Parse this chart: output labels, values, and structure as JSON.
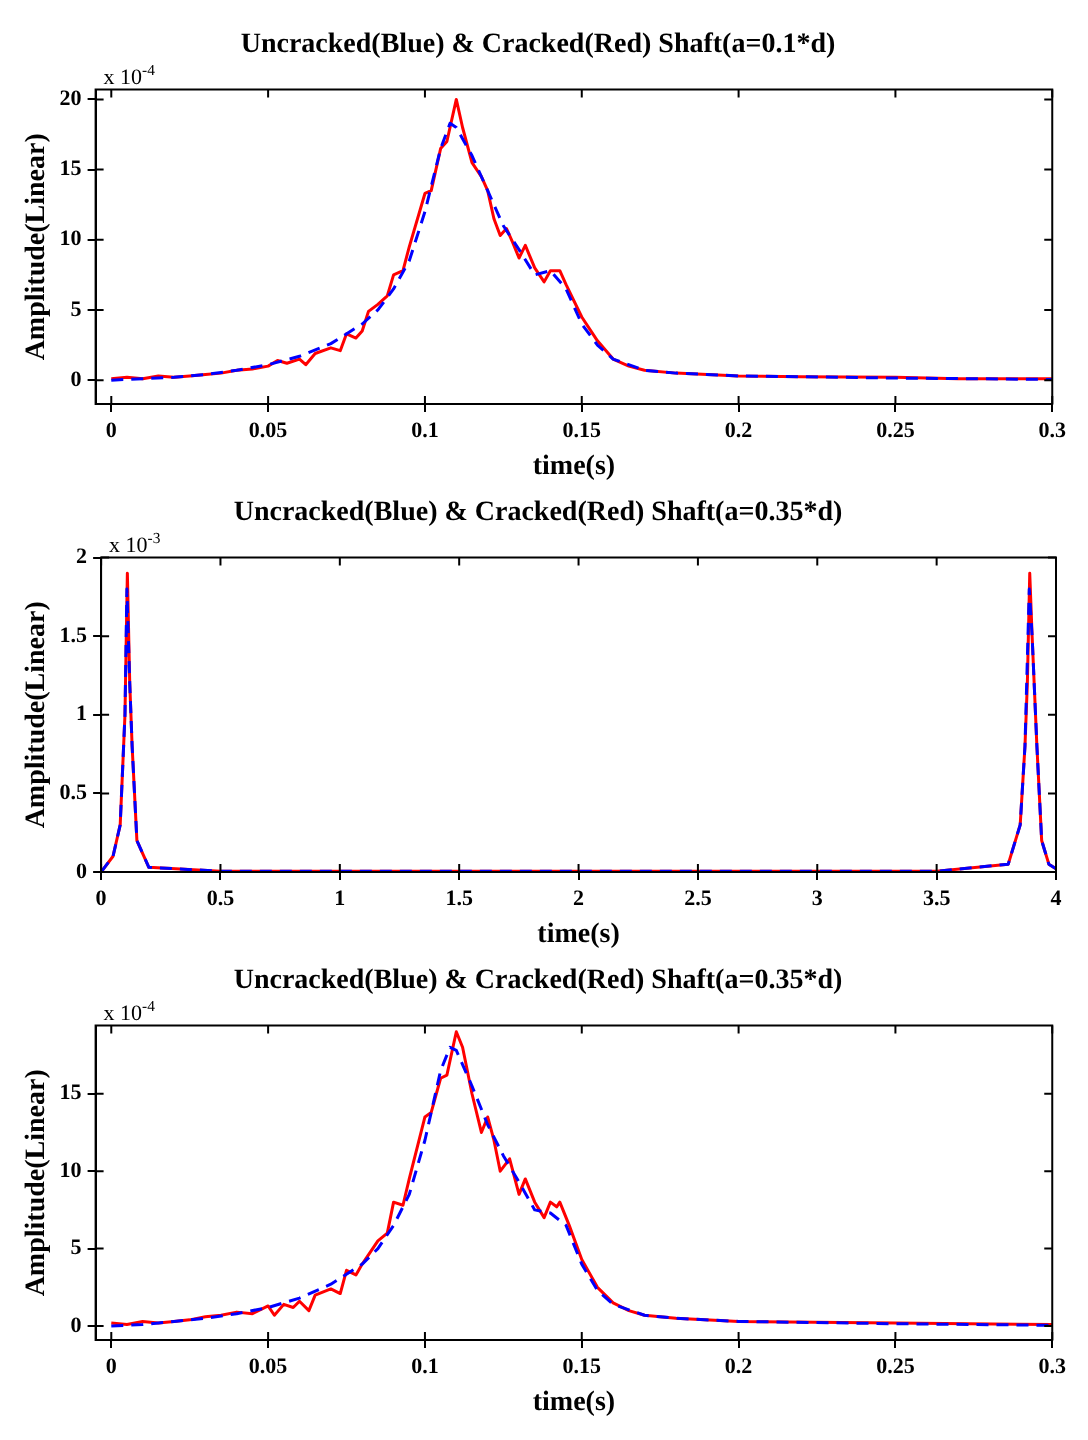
{
  "chart_data": [
    {
      "type": "line",
      "title": "Uncracked(Blue) & Cracked(Red) Shaft(a=0.1*d)",
      "xlabel": "time(s)",
      "ylabel": "Amplitude(Linear)",
      "annotations": [
        "x 10$^{-4}$"
      ],
      "marker": "none",
      "xlim": [
        -0.005,
        0.3
      ],
      "ylim": [
        -1.7,
        20.7
      ],
      "xticks": [
        0,
        0.05,
        0.1,
        0.15,
        0.2,
        0.25,
        0.3
      ],
      "yticks": [
        0,
        5,
        10,
        15,
        20
      ],
      "series": [
        {
          "color": "#0000ff",
          "line_style": "dashed",
          "x": [
            0,
            0.01,
            0.02,
            0.03,
            0.04,
            0.05,
            0.06,
            0.07,
            0.08,
            0.085,
            0.09,
            0.095,
            0.1,
            0.105,
            0.108,
            0.11,
            0.115,
            0.12,
            0.125,
            0.13,
            0.135,
            0.14,
            0.145,
            0.15,
            0.155,
            0.16,
            0.17,
            0.18,
            0.2,
            0.25,
            0.3
          ],
          "values": [
            0,
            0.1,
            0.2,
            0.4,
            0.7,
            1.1,
            1.7,
            2.6,
            4,
            5,
            6.5,
            8.5,
            12,
            16.5,
            18.3,
            18,
            16,
            13.5,
            11,
            9.3,
            7.5,
            7.8,
            6.5,
            4,
            2.5,
            1.5,
            0.7,
            0.5,
            0.3,
            0.15,
            0.05
          ]
        },
        {
          "color": "#ff0000",
          "line_style": "solid",
          "x": [
            0,
            0.005,
            0.01,
            0.015,
            0.02,
            0.025,
            0.03,
            0.035,
            0.04,
            0.045,
            0.05,
            0.053,
            0.056,
            0.06,
            0.062,
            0.065,
            0.07,
            0.073,
            0.075,
            0.078,
            0.08,
            0.082,
            0.085,
            0.088,
            0.09,
            0.093,
            0.095,
            0.1,
            0.102,
            0.105,
            0.107,
            0.11,
            0.112,
            0.115,
            0.118,
            0.12,
            0.122,
            0.124,
            0.126,
            0.128,
            0.13,
            0.132,
            0.135,
            0.138,
            0.14,
            0.143,
            0.145,
            0.15,
            0.155,
            0.16,
            0.165,
            0.17,
            0.18,
            0.19,
            0.2,
            0.22,
            0.25,
            0.27,
            0.3
          ],
          "values": [
            0.1,
            0.2,
            0.1,
            0.3,
            0.2,
            0.3,
            0.4,
            0.5,
            0.7,
            0.8,
            1.0,
            1.4,
            1.2,
            1.5,
            1.1,
            1.9,
            2.3,
            2.1,
            3.3,
            3.0,
            3.5,
            4.9,
            5.4,
            6.0,
            7.5,
            7.8,
            9.5,
            13.3,
            13.5,
            16.5,
            17,
            20,
            18,
            15.5,
            14.5,
            13.5,
            11.5,
            10.3,
            10.8,
            9.8,
            8.7,
            9.6,
            8.0,
            7.0,
            7.8,
            7.8,
            6.8,
            4.5,
            2.8,
            1.5,
            1.0,
            0.7,
            0.5,
            0.4,
            0.3,
            0.25,
            0.2,
            0.1,
            0.1
          ]
        }
      ]
    },
    {
      "type": "line",
      "title": "Uncracked(Blue) & Cracked(Red) Shaft(a=0.35*d)",
      "xlabel": "time(s)",
      "ylabel": "Amplitude(Linear)",
      "annotations": [
        "x 10$^{-3}$"
      ],
      "marker": "none",
      "xlim": [
        0,
        4
      ],
      "ylim": [
        0,
        2
      ],
      "xticks": [
        0,
        0.5,
        1,
        1.5,
        2,
        2.5,
        3,
        3.5,
        4
      ],
      "yticks": [
        0,
        0.5,
        1,
        1.5,
        2
      ],
      "series": [
        {
          "color": "#0000ff",
          "line_style": "dashed",
          "x": [
            0,
            0.05,
            0.08,
            0.1,
            0.108,
            0.12,
            0.13,
            0.15,
            0.2,
            0.5,
            3.5,
            3.8,
            3.85,
            3.87,
            3.888,
            3.9,
            3.92,
            3.94,
            3.97,
            4
          ],
          "values": [
            0,
            0.1,
            0.3,
            1.0,
            1.8,
            1.2,
            0.8,
            0.2,
            0.03,
            0.005,
            0.005,
            0.05,
            0.3,
            0.8,
            1.8,
            1.5,
            0.8,
            0.2,
            0.05,
            0.02
          ]
        },
        {
          "color": "#ff0000",
          "line_style": "solid",
          "x": [
            0,
            0.05,
            0.08,
            0.1,
            0.11,
            0.12,
            0.13,
            0.15,
            0.2,
            0.5,
            3.5,
            3.8,
            3.85,
            3.87,
            3.88,
            3.89,
            3.9,
            3.92,
            3.94,
            3.97,
            4
          ],
          "values": [
            0,
            0.1,
            0.3,
            1.0,
            1.9,
            1.2,
            0.8,
            0.2,
            0.03,
            0.005,
            0.005,
            0.05,
            0.3,
            0.8,
            1.2,
            1.9,
            1.5,
            0.8,
            0.2,
            0.05,
            0.02
          ]
        }
      ]
    },
    {
      "type": "line",
      "title": "Uncracked(Blue) & Cracked(Red) Shaft(a=0.35*d)",
      "xlabel": "time(s)",
      "ylabel": "Amplitude(Linear)",
      "annotations": [
        "x 10$^{-4}$"
      ],
      "marker": "none",
      "xlim": [
        -0.005,
        0.3
      ],
      "ylim": [
        -0.9,
        19.4
      ],
      "xticks": [
        0,
        0.05,
        0.1,
        0.15,
        0.2,
        0.25,
        0.3
      ],
      "yticks": [
        0,
        5,
        10,
        15
      ],
      "series": [
        {
          "color": "#0000ff",
          "line_style": "dashed",
          "x": [
            0,
            0.01,
            0.02,
            0.03,
            0.04,
            0.05,
            0.06,
            0.07,
            0.08,
            0.085,
            0.09,
            0.095,
            0.1,
            0.105,
            0.108,
            0.11,
            0.115,
            0.12,
            0.125,
            0.13,
            0.135,
            0.14,
            0.145,
            0.15,
            0.155,
            0.16,
            0.17,
            0.18,
            0.2,
            0.25,
            0.3
          ],
          "values": [
            0,
            0.1,
            0.3,
            0.5,
            0.8,
            1.2,
            1.8,
            2.7,
            4,
            5,
            6.5,
            8.5,
            12,
            16.5,
            18,
            17.8,
            15.5,
            13,
            11,
            9.3,
            7.5,
            7.3,
            6.5,
            4,
            2.3,
            1.4,
            0.7,
            0.5,
            0.3,
            0.15,
            0.05
          ]
        },
        {
          "color": "#ff0000",
          "line_style": "solid",
          "x": [
            0,
            0.005,
            0.01,
            0.015,
            0.02,
            0.025,
            0.03,
            0.035,
            0.04,
            0.045,
            0.05,
            0.052,
            0.055,
            0.058,
            0.06,
            0.063,
            0.065,
            0.07,
            0.073,
            0.075,
            0.078,
            0.08,
            0.085,
            0.088,
            0.09,
            0.093,
            0.095,
            0.1,
            0.102,
            0.105,
            0.107,
            0.11,
            0.112,
            0.115,
            0.118,
            0.12,
            0.122,
            0.124,
            0.127,
            0.13,
            0.132,
            0.135,
            0.138,
            0.14,
            0.142,
            0.143,
            0.146,
            0.15,
            0.155,
            0.16,
            0.165,
            0.17,
            0.18,
            0.2,
            0.25,
            0.3
          ],
          "values": [
            0.2,
            0.1,
            0.3,
            0.2,
            0.3,
            0.4,
            0.6,
            0.7,
            0.9,
            0.8,
            1.3,
            0.7,
            1.4,
            1.2,
            1.6,
            1.0,
            2.0,
            2.4,
            2.1,
            3.6,
            3.3,
            4,
            5.5,
            6.0,
            8,
            7.8,
            9.5,
            13.5,
            13.8,
            16,
            16.2,
            19,
            18,
            15,
            12.5,
            13.5,
            12,
            10,
            10.8,
            8.5,
            9.5,
            8,
            7,
            8,
            7.7,
            8,
            6.5,
            4.3,
            2.5,
            1.5,
            1.0,
            0.7,
            0.5,
            0.3,
            0.2,
            0.1
          ]
        }
      ]
    }
  ]
}
